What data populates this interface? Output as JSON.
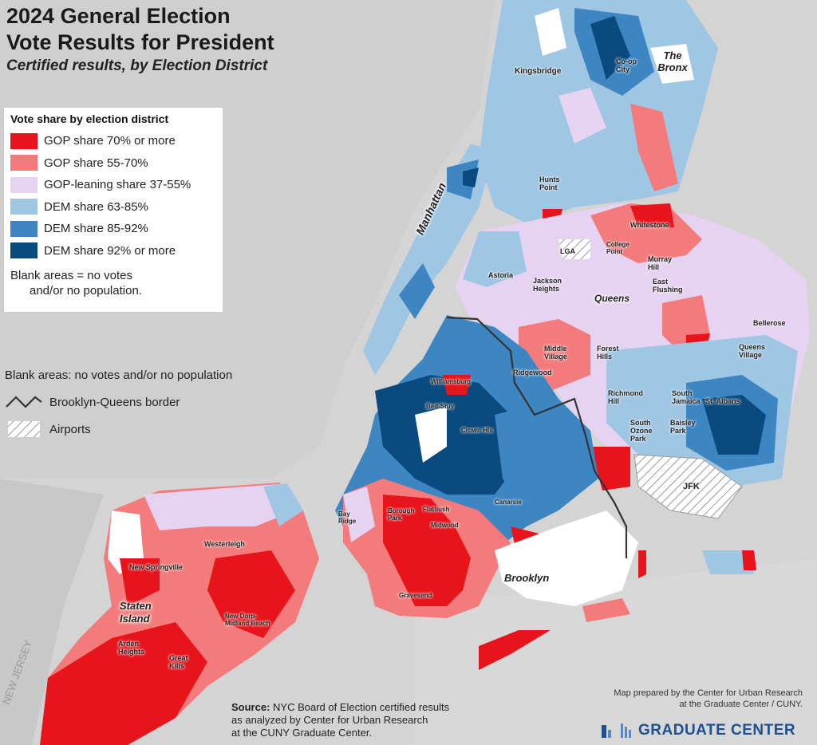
{
  "title": {
    "line1": "2024 General Election",
    "line2": "Vote Results for President",
    "subtitle": "Certified results, by Election District"
  },
  "legend": {
    "heading": "Vote share by election district",
    "items": [
      {
        "label": "GOP share 70% or more",
        "color": "#e8141b"
      },
      {
        "label": "GOP share 55-70%",
        "color": "#f47b7b"
      },
      {
        "label": "GOP-leaning share 37-55%",
        "color": "#e6d3f2"
      },
      {
        "label": "DEM share 63-85%",
        "color": "#9fc6e3"
      },
      {
        "label": "DEM share 85-92%",
        "color": "#3d86c2"
      },
      {
        "label": "DEM share 92% or more",
        "color": "#0b4a7e"
      }
    ],
    "note_line1": "Blank areas = no votes",
    "note_line2": "and/or no population."
  },
  "extra_legend": {
    "blank_note": "Blank areas: no votes and/or no population",
    "border_label": "Brooklyn-Queens border",
    "airports_label": "Airports"
  },
  "boroughs": {
    "bronx": "The Bronx",
    "manhattan": "Manhattan",
    "queens": "Queens",
    "brooklyn": "Brooklyn",
    "staten_island_1": "Staten",
    "staten_island_2": "Island"
  },
  "neighborhoods": {
    "kingsbridge": "Kingsbridge",
    "coop_city": "Co-op City",
    "hunts_point": "Hunts Point",
    "whitestone": "Whitestone",
    "college_point": "College Point",
    "murray_hill": "Murray Hill",
    "east_flushing": "East Flushing",
    "lga": "LGA",
    "astoria": "Astoria",
    "jackson_heights": "Jackson Heights",
    "middle_village": "Middle Village",
    "forest_hills": "Forest Hills",
    "ridgewood": "Ridgewood",
    "bellerose": "Bellerose",
    "queens_village": "Queens Village",
    "richmond_hill": "Richmond Hill",
    "south_jamaica": "South Jamaica",
    "st_albans": "St. Albans",
    "south_ozone_park": "South Ozone Park",
    "baisley_park": "Baisley Park",
    "jfk": "JFK",
    "williamsburg": "Williamsburg",
    "bed_stuy": "Bed-Stuy",
    "crown_hts": "Crown Hts",
    "bay_ridge": "Bay Ridge",
    "borough_park": "Borough Park",
    "midwood": "Midwood",
    "flatbush": "Flatbush",
    "canarsie": "Canarsie",
    "gravesend": "Gravesend",
    "westerleigh": "Westerleigh",
    "new_springville": "New Springville",
    "great_kills": "Great Kills",
    "arden_heights": "Arden Heights",
    "new_dorp": "New Dorp-Midland Beach"
  },
  "source": {
    "label": "Source:",
    "line1": " NYC Board of Election certified results",
    "line2": "as analyzed by Center for Urban Research",
    "line3": "at the CUNY Graduate Center."
  },
  "credit": {
    "line1": "Map prepared by the Center for Urban Research",
    "line2": "at the Graduate Center / CUNY."
  },
  "logo": {
    "text": "GRADUATE CENTER"
  },
  "new_jersey": "NEW JERSEY"
}
